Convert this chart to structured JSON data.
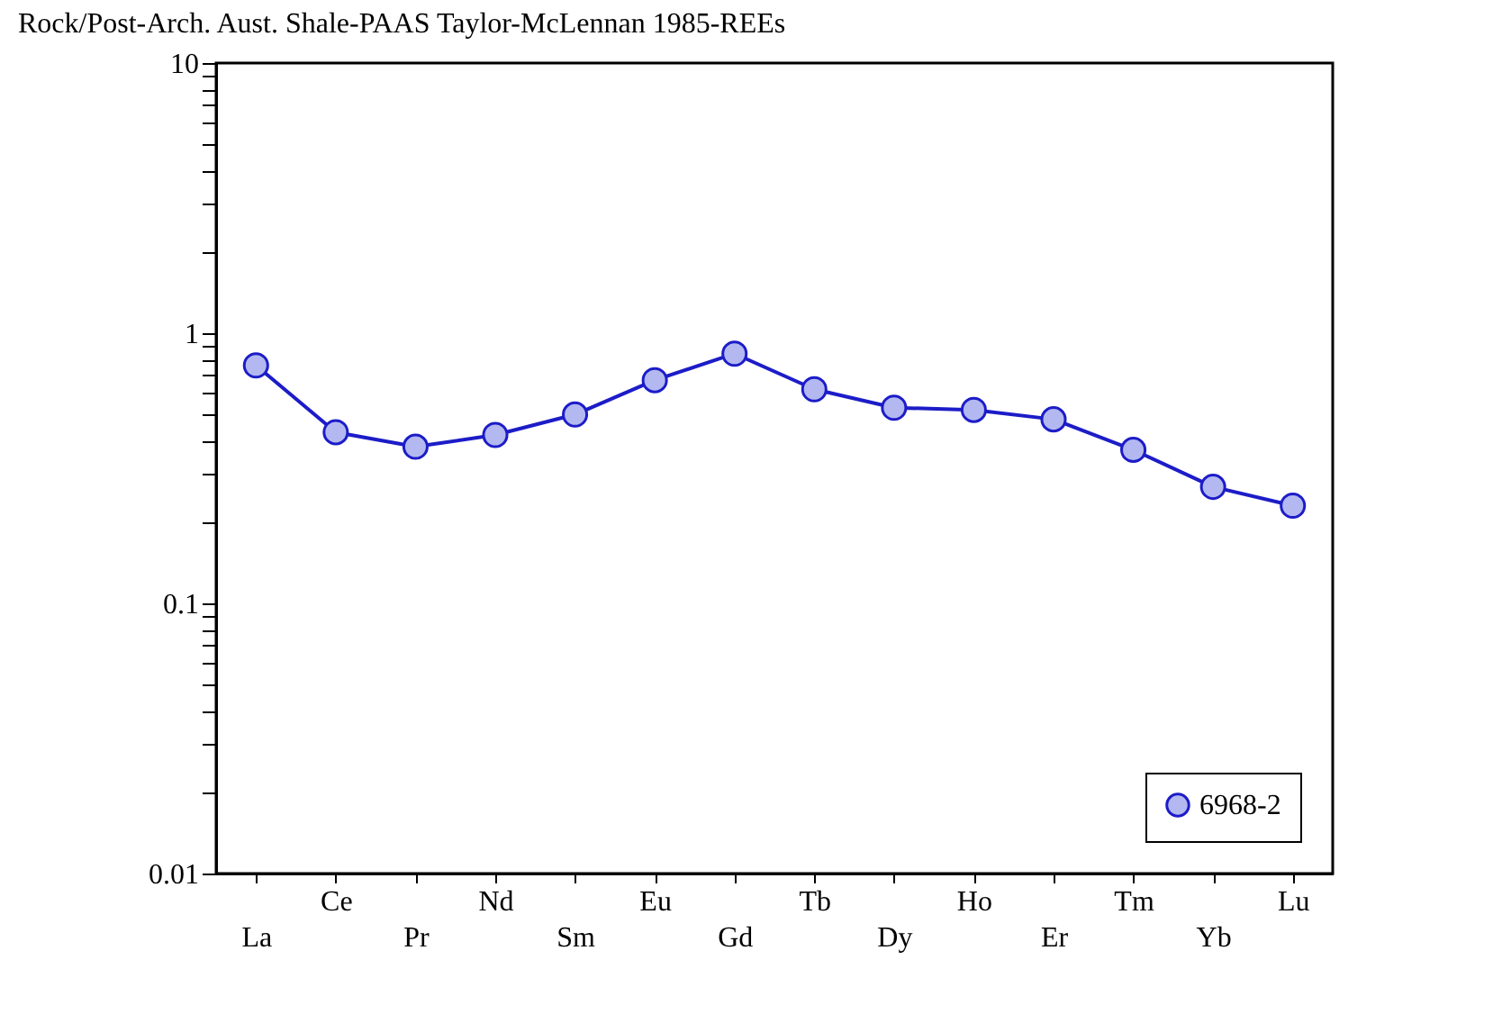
{
  "chart_data": {
    "type": "line",
    "title": "Rock/Post-Arch. Aust. Shale-PAAS     Taylor-McLennan 1985-REEs",
    "categories": [
      "La",
      "Ce",
      "Pr",
      "Nd",
      "Sm",
      "Eu",
      "Gd",
      "Tb",
      "Dy",
      "Ho",
      "Er",
      "Tm",
      "Yb",
      "Lu"
    ],
    "series": [
      {
        "name": "6968-2",
        "color": "#1c1cc8",
        "values": [
          0.76,
          0.43,
          0.38,
          0.42,
          0.5,
          0.67,
          0.84,
          0.62,
          0.53,
          0.52,
          0.48,
          0.37,
          0.27,
          0.23
        ]
      }
    ],
    "log": "y",
    "ylim": [
      0.01,
      10
    ],
    "yticks": [
      0.01,
      {
        "value": 0.02,
        "label": null
      },
      {
        "value": 0.03,
        "label": null
      },
      {
        "value": 0.04,
        "label": null
      },
      {
        "value": 0.05,
        "label": null
      },
      {
        "value": 0.06,
        "label": null
      },
      {
        "value": 0.07,
        "label": null
      },
      {
        "value": 0.08,
        "label": null
      },
      {
        "value": 0.09,
        "label": null
      },
      0.1,
      {
        "value": 0.2,
        "label": null
      },
      {
        "value": 0.3,
        "label": null
      },
      {
        "value": 0.4,
        "label": null
      },
      {
        "value": 0.5,
        "label": null
      },
      {
        "value": 0.6,
        "label": null
      },
      {
        "value": 0.7,
        "label": null
      },
      {
        "value": 0.8,
        "label": null
      },
      {
        "value": 0.9,
        "label": null
      },
      1,
      {
        "value": 2,
        "label": null
      },
      {
        "value": 3,
        "label": null
      },
      {
        "value": 4,
        "label": null
      },
      {
        "value": 5,
        "label": null
      },
      {
        "value": 6,
        "label": null
      },
      {
        "value": 7,
        "label": null
      },
      {
        "value": 8,
        "label": null
      },
      {
        "value": 9,
        "label": null
      },
      10
    ],
    "marker": "circle",
    "line_style": "solid",
    "grid": false,
    "legend": "bottom right"
  }
}
